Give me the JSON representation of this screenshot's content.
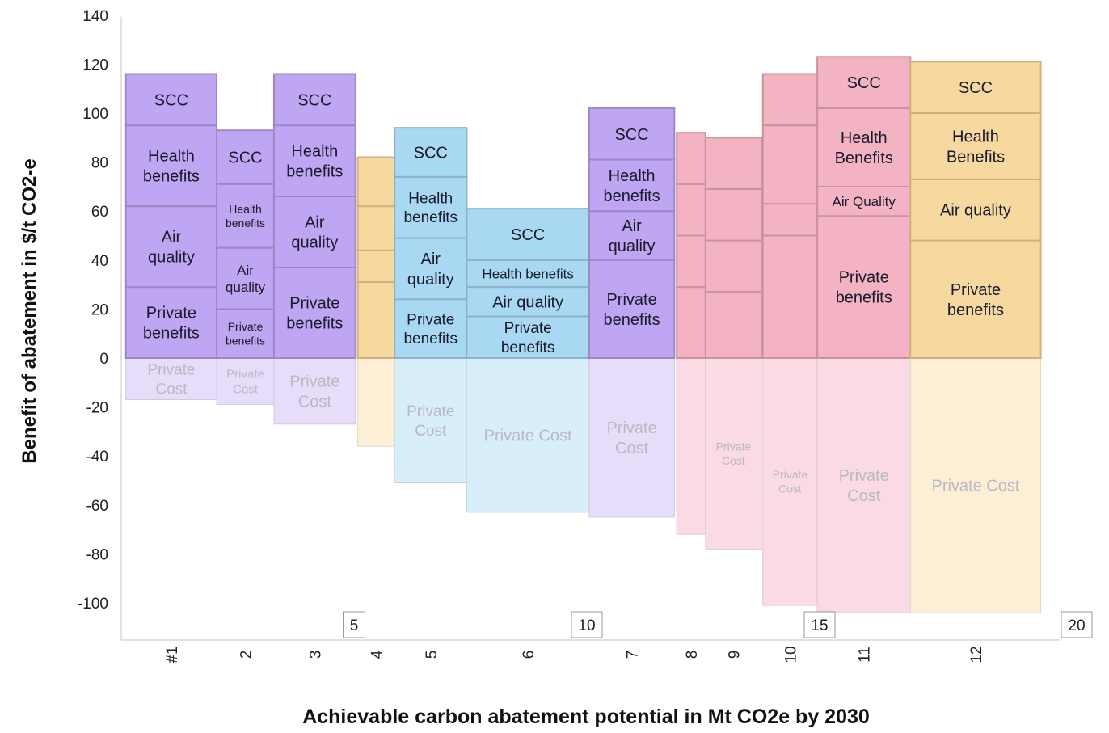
{
  "chart_data": {
    "type": "bar",
    "subtype": "variable-width stacked bar (marginal abatement benefit curve)",
    "title": "",
    "xlabel": "Achievable carbon abatement potential in Mt CO2e by 2030",
    "ylabel": "Benefit of abatement in $/t CO2-e",
    "ylim": [
      -110,
      140
    ],
    "xlim": [
      0,
      20.3
    ],
    "yticks": [
      140,
      120,
      100,
      80,
      60,
      40,
      20,
      0,
      -20,
      -40,
      -60,
      -80,
      -100
    ],
    "xticks": [
      5,
      10,
      15,
      20
    ],
    "grid": false,
    "legend": "none",
    "measures": [
      {
        "category": "#1",
        "x_start": 0.1,
        "x_end": 2.05,
        "color": "#bfa6f2",
        "cost_color": "#e7ddfa",
        "segments": [
          {
            "label": "Private benefits",
            "value": 29
          },
          {
            "label": "Air quality",
            "value": 33
          },
          {
            "label": "Health benefits",
            "value": 33
          },
          {
            "label": "SCC",
            "value": 21
          }
        ],
        "private_cost": -17
      },
      {
        "category": "2",
        "x_start": 2.05,
        "x_end": 3.28,
        "color": "#bfa6f2",
        "cost_color": "#e7ddfa",
        "segments": [
          {
            "label": "Private benefits",
            "value": 20
          },
          {
            "label": "Air quality",
            "value": 25
          },
          {
            "label": "Health benefits",
            "value": 26
          },
          {
            "label": "SCC",
            "value": 22
          }
        ],
        "private_cost": -19
      },
      {
        "category": "3",
        "x_start": 3.28,
        "x_end": 5.03,
        "color": "#bfa6f2",
        "cost_color": "#e7ddfa",
        "segments": [
          {
            "label": "Private benefits",
            "value": 37
          },
          {
            "label": "Air quality",
            "value": 29
          },
          {
            "label": "Health benefits",
            "value": 29
          },
          {
            "label": "SCC",
            "value": 21
          }
        ],
        "private_cost": -27
      },
      {
        "category": "4",
        "x_start": 5.08,
        "x_end": 5.87,
        "color": "#f7d9a0",
        "cost_color": "#fcefd6",
        "segments": [
          {
            "label": "",
            "value": 31
          },
          {
            "label": "",
            "value": 13
          },
          {
            "label": "",
            "value": 18
          },
          {
            "label": "",
            "value": 20
          }
        ],
        "private_cost": -36
      },
      {
        "category": "5",
        "x_start": 5.87,
        "x_end": 7.42,
        "color": "#a9d9f2",
        "cost_color": "#d8eef9",
        "segments": [
          {
            "label": "Private benefits",
            "value": 24
          },
          {
            "label": "Air quality",
            "value": 25
          },
          {
            "label": "Health benefits",
            "value": 25
          },
          {
            "label": "SCC",
            "value": 20
          }
        ],
        "private_cost": -51
      },
      {
        "category": "6",
        "x_start": 7.42,
        "x_end": 10.05,
        "color": "#a9d9f2",
        "cost_color": "#d8eef9",
        "segments": [
          {
            "label": "Private benefits",
            "value": 17
          },
          {
            "label": "Air quality",
            "value": 12
          },
          {
            "label": "Health benefits",
            "value": 11
          },
          {
            "label": "SCC",
            "value": 21
          }
        ],
        "private_cost": -63
      },
      {
        "category": "7",
        "x_start": 10.05,
        "x_end": 11.88,
        "color": "#bfa6f2",
        "cost_color": "#e7ddfa",
        "segments": [
          {
            "label": "Private benefits",
            "value": 40
          },
          {
            "label": "Air quality",
            "value": 20
          },
          {
            "label": "Health benefits",
            "value": 21
          },
          {
            "label": "SCC",
            "value": 21
          }
        ],
        "private_cost": -65
      },
      {
        "category": "8",
        "x_start": 11.93,
        "x_end": 12.55,
        "color": "#f4b3c2",
        "cost_color": "#fadbe3",
        "segments": [
          {
            "label": "",
            "value": 29
          },
          {
            "label": "",
            "value": 21
          },
          {
            "label": "",
            "value": 21
          },
          {
            "label": "",
            "value": 21
          }
        ],
        "private_cost": -72
      },
      {
        "category": "9",
        "x_start": 12.55,
        "x_end": 13.75,
        "color": "#f4b3c2",
        "cost_color": "#fadbe3",
        "segments": [
          {
            "label": "",
            "value": 27
          },
          {
            "label": "",
            "value": 21
          },
          {
            "label": "",
            "value": 21
          },
          {
            "label": "",
            "value": 21
          }
        ],
        "private_cost": -78
      },
      {
        "category": "10",
        "x_start": 13.78,
        "x_end": 14.95,
        "color": "#f4b3c2",
        "cost_color": "#fadbe3",
        "segments": [
          {
            "label": "",
            "value": 50
          },
          {
            "label": "",
            "value": 13
          },
          {
            "label": "",
            "value": 32
          },
          {
            "label": "",
            "value": 21
          }
        ],
        "private_cost": -101
      },
      {
        "category": "11",
        "x_start": 14.95,
        "x_end": 16.95,
        "color": "#f4b3c2",
        "cost_color": "#fadbe3",
        "segments": [
          {
            "label": "Private benefits",
            "value": 58
          },
          {
            "label": "Air Quality",
            "value": 12
          },
          {
            "label": "Health Benefits",
            "value": 32
          },
          {
            "label": "SCC",
            "value": 21
          }
        ],
        "private_cost": -104
      },
      {
        "category": "12",
        "x_start": 16.95,
        "x_end": 19.75,
        "color": "#f7d9a0",
        "cost_color": "#fcefd6",
        "segments": [
          {
            "label": "Private benefits",
            "value": 48
          },
          {
            "label": "Air quality",
            "value": 25
          },
          {
            "label": "Health Benefits",
            "value": 27
          },
          {
            "label": "SCC",
            "value": 21
          }
        ],
        "private_cost": -104
      }
    ],
    "private_cost_label": "Private Cost"
  }
}
